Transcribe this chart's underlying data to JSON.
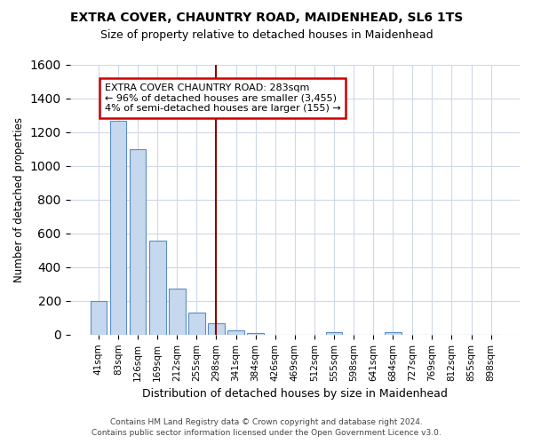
{
  "title": "EXTRA COVER, CHAUNTRY ROAD, MAIDENHEAD, SL6 1TS",
  "subtitle": "Size of property relative to detached houses in Maidenhead",
  "xlabel": "Distribution of detached houses by size in Maidenhead",
  "ylabel": "Number of detached properties",
  "categories": [
    "41sqm",
    "83sqm",
    "126sqm",
    "169sqm",
    "212sqm",
    "255sqm",
    "298sqm",
    "341sqm",
    "384sqm",
    "426sqm",
    "469sqm",
    "512sqm",
    "555sqm",
    "598sqm",
    "641sqm",
    "684sqm",
    "727sqm",
    "769sqm",
    "812sqm",
    "855sqm",
    "898sqm"
  ],
  "values": [
    200,
    1270,
    1100,
    555,
    275,
    130,
    65,
    28,
    10,
    0,
    0,
    0,
    15,
    0,
    0,
    15,
    0,
    0,
    0,
    0,
    0
  ],
  "bar_color": "#c5d8ee",
  "bar_edge_color": "#5b8ec4",
  "vline_x": 6,
  "vline_color": "#8b0000",
  "annotation_line1": "EXTRA COVER CHAUNTRY ROAD: 283sqm",
  "annotation_line2": "← 96% of detached houses are smaller (3,455)",
  "annotation_line3": "4% of semi-detached houses are larger (155) →",
  "annotation_box_color": "white",
  "annotation_box_edge": "#cc0000",
  "footer": "Contains HM Land Registry data © Crown copyright and database right 2024.\nContains public sector information licensed under the Open Government Licence v3.0.",
  "ylim": [
    0,
    1600
  ],
  "yticks": [
    0,
    200,
    400,
    600,
    800,
    1000,
    1200,
    1400,
    1600
  ],
  "background_color": "#ffffff",
  "plot_bg_color": "#ffffff",
  "grid_color": "#d0d8e8"
}
